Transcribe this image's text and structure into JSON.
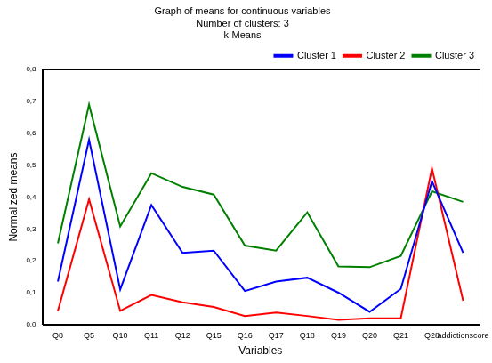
{
  "chart_data": {
    "type": "line",
    "title": [
      "Graph of means for continuous variables",
      "Number of clusters: 3",
      "k-Means"
    ],
    "x_label": "Variables",
    "y_label": "Normalized means",
    "categories": [
      "Q8",
      "Q5",
      "Q10",
      "Q11",
      "Q12",
      "Q15",
      "Q16",
      "Q17",
      "Q18",
      "Q19",
      "Q20",
      "Q21",
      "Q28",
      "addictionscore"
    ],
    "series": [
      {
        "name": "Cluster 1",
        "color": "#0000ff",
        "values": [
          0.135,
          0.58,
          0.11,
          0.375,
          0.225,
          0.232,
          0.105,
          0.135,
          0.147,
          0.1,
          0.04,
          0.112,
          0.45,
          0.225
        ]
      },
      {
        "name": "Cluster 2",
        "color": "#ff0000",
        "values": [
          0.043,
          0.393,
          0.043,
          0.093,
          0.07,
          0.055,
          0.027,
          0.038,
          0.027,
          0.015,
          0.02,
          0.02,
          0.49,
          0.075
        ]
      },
      {
        "name": "Cluster 3",
        "color": "#008000",
        "values": [
          0.255,
          0.69,
          0.308,
          0.475,
          0.432,
          0.408,
          0.248,
          0.232,
          0.352,
          0.182,
          0.18,
          0.215,
          0.418,
          0.385
        ]
      }
    ],
    "ylim": [
      0,
      0.8
    ],
    "yticks": [
      {
        "value": 0,
        "label": "0,0"
      },
      {
        "value": 0.1,
        "label": "0,1"
      },
      {
        "value": 0.2,
        "label": "0,2"
      },
      {
        "value": 0.3,
        "label": "0,3"
      },
      {
        "value": 0.4,
        "label": "0,4"
      },
      {
        "value": 0.5,
        "label": "0,5"
      },
      {
        "value": 0.6,
        "label": "0,6"
      },
      {
        "value": 0.7,
        "label": "0,7"
      },
      {
        "value": 0.8,
        "label": "0,8"
      }
    ],
    "grid": false,
    "legend": "upper right",
    "marker": "none",
    "line_style": "solid"
  }
}
